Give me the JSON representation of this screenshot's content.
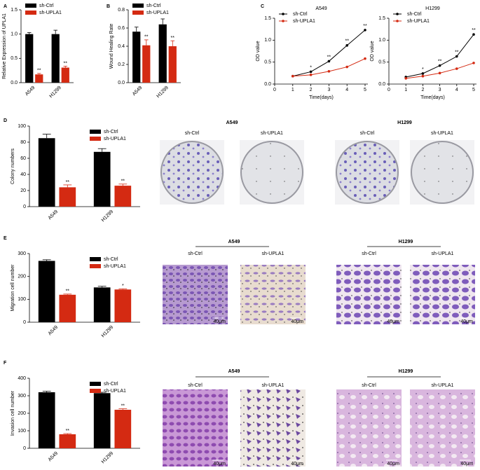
{
  "chart_data": [
    {
      "type": "bar",
      "panel_label": "A",
      "ylabel": "Relative Expression of UPLA1",
      "categories": [
        "A549",
        "H1299"
      ],
      "series": [
        {
          "name": "sh-Ctrl",
          "color": "#000000",
          "values": [
            1.0,
            1.0
          ],
          "errors": [
            0.03,
            0.08
          ]
        },
        {
          "name": "sh-UPLA1",
          "color": "#d42a12",
          "values": [
            0.17,
            0.31
          ],
          "errors": [
            0.02,
            0.03
          ],
          "annotations": [
            "**",
            "**"
          ]
        }
      ],
      "ylim": [
        0,
        1.5
      ],
      "yticks": [
        {
          "value": 0,
          "label": "0.0"
        },
        {
          "value": 0.5,
          "label": "0.5"
        },
        {
          "value": 1,
          "label": "1.0"
        },
        {
          "value": 1.5,
          "label": "1.5"
        }
      ],
      "legend": "upper left"
    },
    {
      "type": "bar",
      "panel_label": "B",
      "ylabel": "Wound Healing Rate",
      "categories": [
        "A549",
        "H1299"
      ],
      "series": [
        {
          "name": "sh-Ctrl",
          "color": "#000000",
          "values": [
            0.56,
            0.64
          ],
          "errors": [
            0.05,
            0.06
          ]
        },
        {
          "name": "sh-UPLA1",
          "color": "#d42a12",
          "values": [
            0.41,
            0.4
          ],
          "errors": [
            0.06,
            0.06
          ],
          "annotations": [
            "**",
            "**"
          ]
        }
      ],
      "ylim": [
        0,
        0.8
      ],
      "yticks": [
        {
          "value": 0,
          "label": "0.0"
        },
        {
          "value": 0.2,
          "label": "0.2"
        },
        {
          "value": 0.4,
          "label": "0.4"
        },
        {
          "value": 0.6,
          "label": "0.6"
        },
        {
          "value": 0.8,
          "label": "0.8"
        }
      ],
      "legend": "upper left"
    },
    {
      "type": "line",
      "panel_label": "C",
      "title": "A549",
      "xlabel": "Time(days)",
      "ylabel": "OD value",
      "x": [
        1,
        2,
        3,
        4,
        5
      ],
      "xlim": [
        0,
        5
      ],
      "xticks": [
        0,
        1,
        2,
        3,
        4,
        5
      ],
      "ylim": [
        0,
        1.5
      ],
      "yticks": [
        {
          "value": 0,
          "label": "0.0"
        },
        {
          "value": 0.5,
          "label": "0.5"
        },
        {
          "value": 1,
          "label": "1.0"
        },
        {
          "value": 1.5,
          "label": "1.5"
        }
      ],
      "legend": "upper left",
      "series": [
        {
          "name": "sh-Ctrl",
          "color": "#000000",
          "values": [
            0.18,
            0.28,
            0.52,
            0.88,
            1.23
          ],
          "annotations": [
            null,
            "*",
            "**",
            "**",
            "**"
          ]
        },
        {
          "name": "sh-UPLA1",
          "color": "#d42a12",
          "values": [
            0.18,
            0.21,
            0.29,
            0.39,
            0.58
          ]
        }
      ]
    },
    {
      "type": "line",
      "title": "H1299",
      "xlabel": "Time(days)",
      "ylabel": "OD value",
      "x": [
        1,
        2,
        3,
        4,
        5
      ],
      "xlim": [
        0,
        5
      ],
      "xticks": [
        0,
        1,
        2,
        3,
        4,
        5
      ],
      "ylim": [
        0,
        1.5
      ],
      "yticks": [
        {
          "value": 0,
          "label": "0.0"
        },
        {
          "value": 0.5,
          "label": "0.5"
        },
        {
          "value": 1,
          "label": "1.0"
        },
        {
          "value": 1.5,
          "label": "1.5"
        }
      ],
      "legend": "upper left",
      "series": [
        {
          "name": "sh-Ctrl",
          "color": "#000000",
          "values": [
            0.16,
            0.24,
            0.42,
            0.63,
            1.13
          ],
          "annotations": [
            null,
            "*",
            "**",
            "**",
            "**"
          ]
        },
        {
          "name": "sh-UPLA1",
          "color": "#d42a12",
          "values": [
            0.13,
            0.18,
            0.25,
            0.35,
            0.48
          ]
        }
      ]
    },
    {
      "type": "bar",
      "panel_label": "D",
      "ylabel": "Colony numbers",
      "categories": [
        "A549",
        "H1299"
      ],
      "series": [
        {
          "name": "sh-Ctrl",
          "color": "#000000",
          "values": [
            85,
            68
          ],
          "errors": [
            5,
            4
          ]
        },
        {
          "name": "sh-UPLA1",
          "color": "#d42a12",
          "values": [
            24,
            26
          ],
          "errors": [
            3,
            2
          ],
          "annotations": [
            "**",
            "**"
          ]
        }
      ],
      "ylim": [
        0,
        100
      ],
      "yticks": [
        0,
        20,
        40,
        60,
        80,
        100
      ],
      "legend": "upper right"
    },
    {
      "type": "bar",
      "panel_label": "E",
      "ylabel": "Migration cell number",
      "categories": [
        "A549",
        "H1299"
      ],
      "series": [
        {
          "name": "sh-Ctrl",
          "color": "#000000",
          "values": [
            268,
            152
          ],
          "errors": [
            5,
            5
          ]
        },
        {
          "name": "sh-UPLA1",
          "color": "#d42a12",
          "values": [
            120,
            143
          ],
          "errors": [
            3,
            3
          ],
          "annotations": [
            "**",
            "*"
          ]
        }
      ],
      "ylim": [
        0,
        300
      ],
      "yticks": [
        0,
        100,
        200,
        300
      ],
      "legend": "upper right"
    },
    {
      "type": "bar",
      "panel_label": "F",
      "ylabel": "Invasion cell number",
      "categories": [
        "A549",
        "H1299"
      ],
      "series": [
        {
          "name": "sh-Ctrl",
          "color": "#000000",
          "values": [
            320,
            315
          ],
          "errors": [
            6,
            5
          ]
        },
        {
          "name": "sh-UPLA1",
          "color": "#d42a12",
          "values": [
            80,
            220
          ],
          "errors": [
            4,
            6
          ],
          "annotations": [
            "**",
            "**"
          ]
        }
      ],
      "ylim": [
        0,
        400
      ],
      "yticks": [
        0,
        100,
        200,
        300,
        400
      ],
      "legend": "upper right"
    }
  ],
  "photos": [
    {
      "groups": [
        {
          "title": "A549",
          "labels": [
            "sh-Ctrl",
            "sh-UPLA1"
          ]
        },
        {
          "title": "H1299",
          "labels": [
            "sh-Ctrl",
            "sh-UPLA1"
          ]
        }
      ]
    },
    {
      "groups": [
        {
          "title": "A549",
          "labels": [
            "sh-Ctrl",
            "sh-UPLA1"
          ]
        },
        {
          "title": "H1299",
          "labels": [
            "sh-Ctrl",
            "sh-UPLA1"
          ]
        }
      ],
      "scale_bar": "40μm"
    },
    {
      "groups": [
        {
          "title": "A549",
          "labels": [
            "sh-Ctrl",
            "sh-UPLA1"
          ]
        },
        {
          "title": "H1299",
          "labels": [
            "sh-Ctrl",
            "sh-UPLA1"
          ]
        }
      ],
      "scale_bar": "40μm"
    }
  ]
}
